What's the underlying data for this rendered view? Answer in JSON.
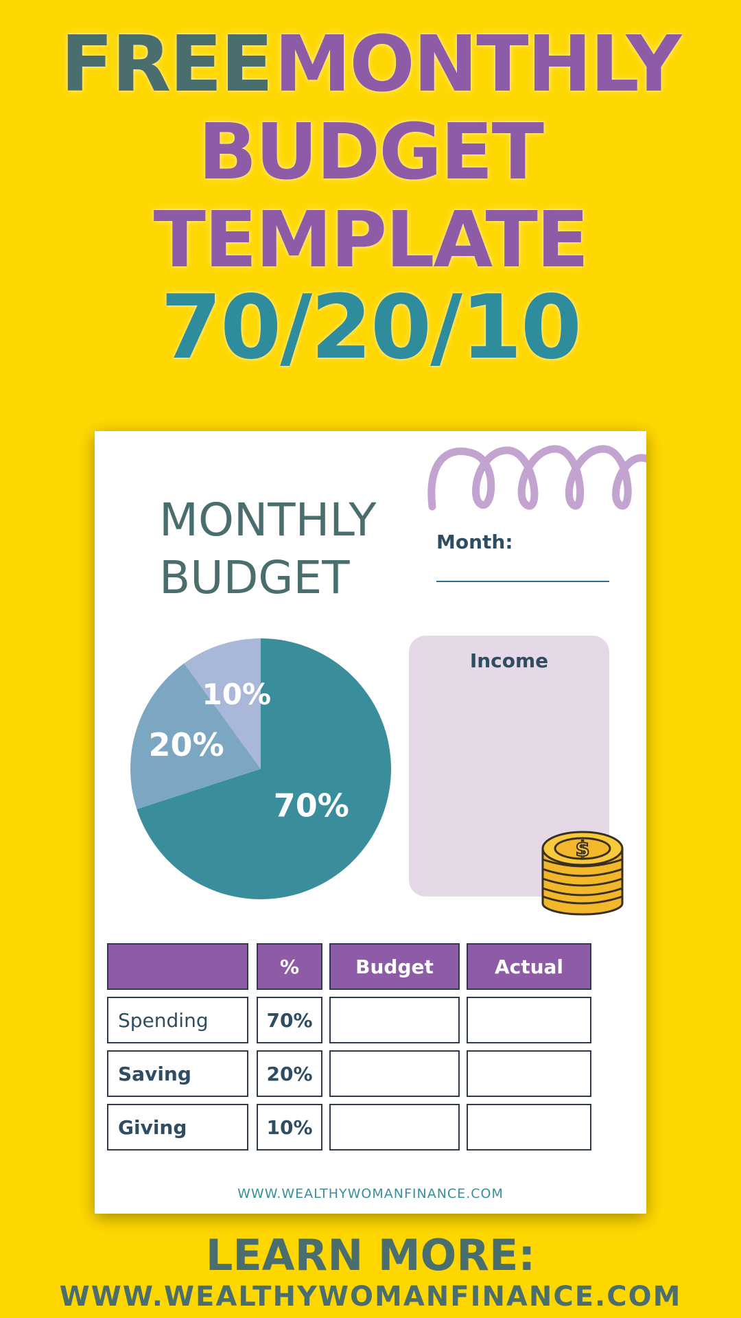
{
  "headline": {
    "word_free": "FREE",
    "word_monthly": "MONTHLY",
    "word_budget": "BUDGET",
    "word_template": "TEMPLATE",
    "ratio": "70/20/10"
  },
  "template": {
    "title_line1": "MONTHLY",
    "title_line2": "BUDGET",
    "month_label": "Month:",
    "income_label": "Income",
    "footer_url": "WWW.WEALTHYWOMANFINANCE.COM",
    "icons": {
      "decoration": "squiggle-icon",
      "money": "coin-stack-icon"
    },
    "table": {
      "headers": [
        "",
        "%",
        "Budget",
        "Actual"
      ],
      "rows": [
        {
          "name": "Spending",
          "pct": "70%",
          "budget": "",
          "actual": ""
        },
        {
          "name": "Saving",
          "pct": "20%",
          "budget": "",
          "actual": ""
        },
        {
          "name": "Giving",
          "pct": "10%",
          "budget": "",
          "actual": ""
        }
      ]
    }
  },
  "chart_data": {
    "type": "pie",
    "slices": [
      {
        "value": 70,
        "label": "70%",
        "color": "#3A8E9C"
      },
      {
        "value": 20,
        "label": "20%",
        "color": "#7BA7C2"
      },
      {
        "value": 10,
        "label": "10%",
        "color": "#A9B8D9"
      }
    ]
  },
  "cta": {
    "title": "LEARN MORE:",
    "url": "WWW.WEALTHYWOMANFINANCE.COM"
  },
  "colors": {
    "background": "#FFD700",
    "teal_dark": "#4A6E6E",
    "purple": "#8E5BA6",
    "teal": "#2F8C9C",
    "income_box": "#E5D8E7",
    "squiggle": "#C3A3CF"
  }
}
